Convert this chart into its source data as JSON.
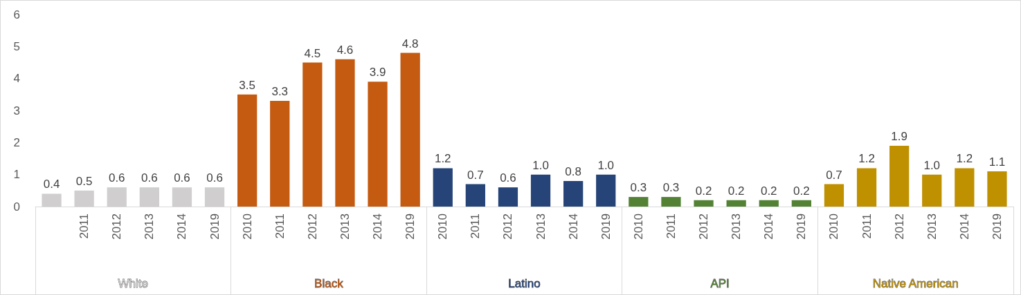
{
  "chart_data": {
    "type": "bar",
    "stacked": true,
    "grid": false,
    "legend": false,
    "categories": [
      null,
      "2011",
      "2012",
      "2013",
      "2014",
      "2019",
      "2010",
      "2011",
      "2012",
      "2013",
      "2014",
      "2019",
      "2010",
      "2011",
      "2012",
      "2013",
      "2014",
      "2019",
      "2010",
      "2011",
      "2012",
      "2013",
      "2014",
      "2019",
      "2010",
      "2011",
      "2012",
      "2013",
      "2014",
      "2019"
    ],
    "ylim": [
      0,
      6
    ],
    "yticks": [
      0,
      1,
      2,
      3,
      4,
      5,
      6
    ],
    "series": [
      {
        "name": "White",
        "color": "#d0cece",
        "values": [
          0.4,
          0.5,
          0.6,
          0.6,
          0.6,
          0.6,
          null,
          null,
          null,
          null,
          null,
          null,
          null,
          null,
          null,
          null,
          null,
          null,
          null,
          null,
          null,
          null,
          null,
          null,
          null,
          null,
          null,
          null,
          null,
          null
        ],
        "value_labels": [
          "0.4",
          "0.5",
          "0.6",
          "0.6",
          "0.6",
          "0.6",
          null,
          null,
          null,
          null,
          null,
          null,
          null,
          null,
          null,
          null,
          null,
          null,
          null,
          null,
          null,
          null,
          null,
          null,
          null,
          null,
          null,
          null,
          null,
          null
        ]
      },
      {
        "name": "Black",
        "color": "#c55a11",
        "values": [
          null,
          null,
          null,
          null,
          null,
          null,
          3.5,
          3.3,
          4.5,
          4.6,
          3.9,
          4.8,
          null,
          null,
          null,
          null,
          null,
          null,
          null,
          null,
          null,
          null,
          null,
          null,
          null,
          null,
          null,
          null,
          null,
          null
        ],
        "value_labels": [
          null,
          null,
          null,
          null,
          null,
          null,
          "3.5",
          "3.3",
          "4.5",
          "4.6",
          "3.9",
          "4.8",
          null,
          null,
          null,
          null,
          null,
          null,
          null,
          null,
          null,
          null,
          null,
          null,
          null,
          null,
          null,
          null,
          null,
          null
        ]
      },
      {
        "name": "Latino",
        "color": "#264478",
        "values": [
          null,
          null,
          null,
          null,
          null,
          null,
          null,
          null,
          null,
          null,
          null,
          null,
          1.2,
          0.7,
          0.6,
          1.0,
          0.8,
          1.0,
          null,
          null,
          null,
          null,
          null,
          null,
          null,
          null,
          null,
          null,
          null,
          null
        ],
        "value_labels": [
          null,
          null,
          null,
          null,
          null,
          null,
          null,
          null,
          null,
          null,
          null,
          null,
          "1.2",
          "0.7",
          "0.6",
          "1.0",
          "0.8",
          "1.0",
          null,
          null,
          null,
          null,
          null,
          null,
          null,
          null,
          null,
          null,
          null,
          null
        ]
      },
      {
        "name": "API",
        "color": "#548235",
        "values": [
          null,
          null,
          null,
          null,
          null,
          null,
          null,
          null,
          null,
          null,
          null,
          null,
          null,
          null,
          null,
          null,
          null,
          null,
          0.3,
          0.3,
          0.2,
          0.2,
          0.2,
          0.2,
          null,
          null,
          null,
          null,
          null,
          null
        ],
        "value_labels": [
          null,
          null,
          null,
          null,
          null,
          null,
          null,
          null,
          null,
          null,
          null,
          null,
          null,
          null,
          null,
          null,
          null,
          null,
          "0.3",
          "0.3",
          "0.2",
          "0.2",
          "0.2",
          "0.2",
          null,
          null,
          null,
          null,
          null,
          null
        ]
      },
      {
        "name": "Native American",
        "color": "#bf9000",
        "values": [
          null,
          null,
          null,
          null,
          null,
          null,
          null,
          null,
          null,
          null,
          null,
          null,
          null,
          null,
          null,
          null,
          null,
          null,
          null,
          null,
          null,
          null,
          null,
          null,
          0.7,
          1.2,
          1.9,
          1.0,
          1.2,
          1.1
        ],
        "value_labels": [
          null,
          null,
          null,
          null,
          null,
          null,
          null,
          null,
          null,
          null,
          null,
          null,
          null,
          null,
          null,
          null,
          null,
          null,
          null,
          null,
          null,
          null,
          null,
          null,
          "0.7",
          "1.2",
          "1.9",
          "1.0",
          "1.2",
          "1.1"
        ]
      }
    ]
  }
}
